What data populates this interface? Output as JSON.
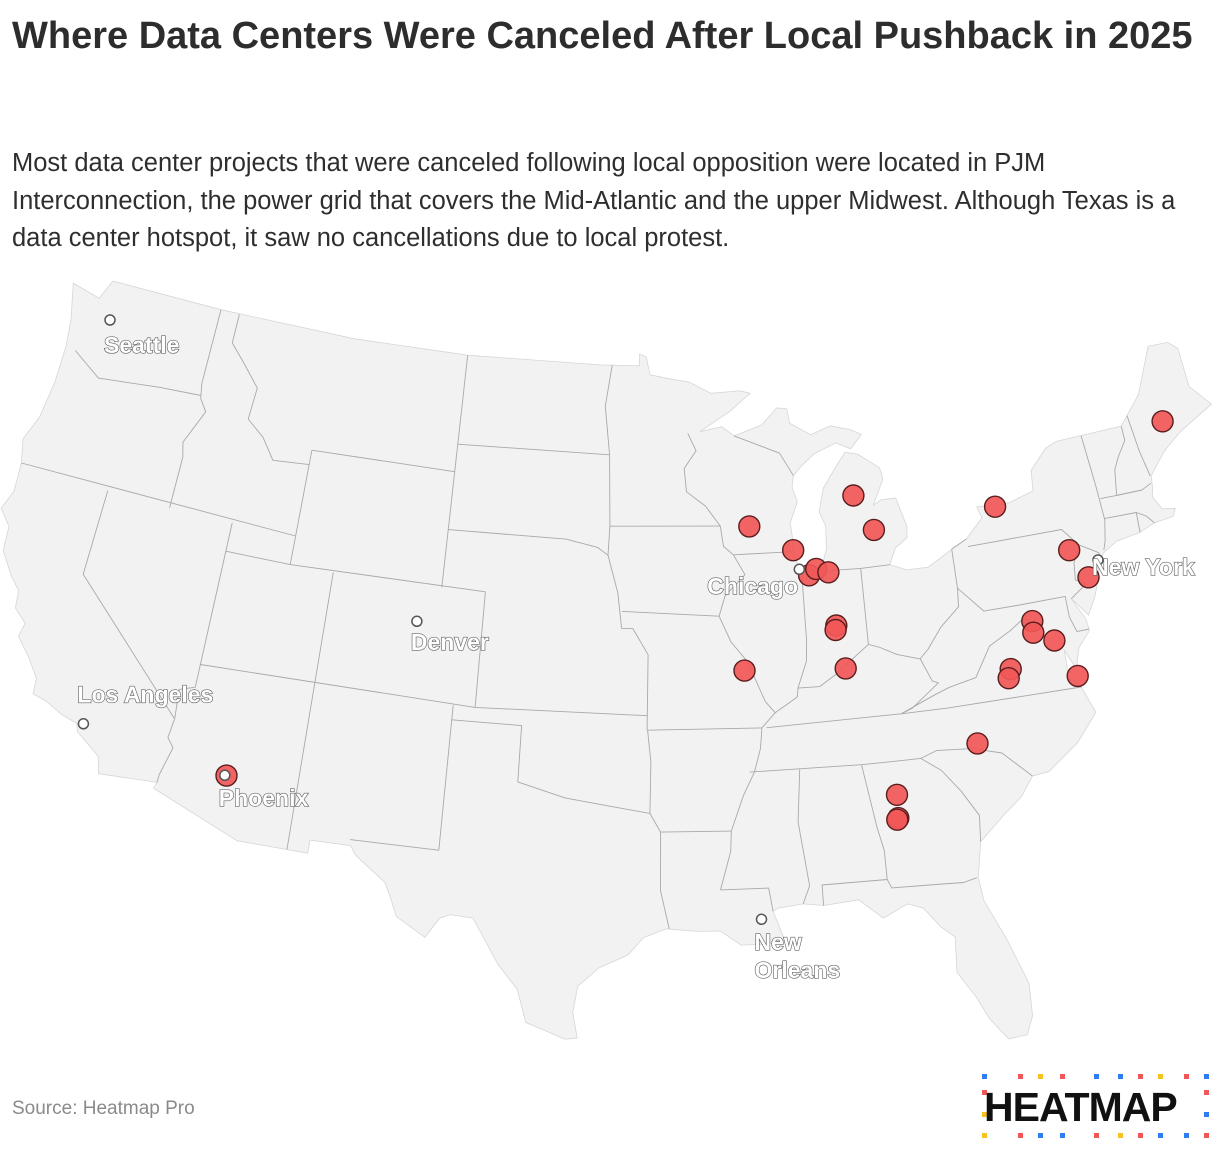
{
  "header": {
    "title": "Where Data Centers Were Canceled After Local Pushback in 2025",
    "subtitle": "Most data center projects that were canceled following local opposition were located in PJM Interconnection, the power grid that covers the Mid-Atlantic and the upper Midwest. Although Texas is a data center hotspot, it saw no cancellations due to local protest."
  },
  "map": {
    "region": "United States (contiguous)",
    "colors": {
      "land": "#f2f2f2",
      "state_border": "#a9a9a9",
      "marker_fill": "#f25757",
      "marker_stroke": "#5a1d1d",
      "city_dot": "#ffffff"
    },
    "cities": [
      {
        "label": "Seattle",
        "lines": [
          "Seattle"
        ],
        "lat": 47.61,
        "lon": -122.33
      },
      {
        "label": "Los Angeles",
        "lines": [
          "Los Angeles"
        ],
        "lat": 34.05,
        "lon": -118.24
      },
      {
        "label": "Denver",
        "lines": [
          "Denver"
        ],
        "lat": 39.74,
        "lon": -104.99
      },
      {
        "label": "Phoenix",
        "lines": [
          "Phoenix"
        ],
        "lat": 33.45,
        "lon": -112.07
      },
      {
        "label": "Chicago",
        "lines": [
          "Chicago"
        ],
        "lat": 41.88,
        "lon": -87.63
      },
      {
        "label": "New Orleans",
        "lines": [
          "New",
          "Orleans"
        ],
        "lat": 29.95,
        "lon": -90.07
      },
      {
        "label": "New York",
        "lines": [
          "New York"
        ],
        "lat": 40.71,
        "lon": -74.01
      }
    ],
    "canceled_projects": [
      {
        "lat": 33.45,
        "lon": -112.0
      },
      {
        "lat": 43.45,
        "lon": -89.85
      },
      {
        "lat": 42.55,
        "lon": -87.85
      },
      {
        "lat": 41.65,
        "lon": -87.2
      },
      {
        "lat": 41.85,
        "lon": -86.85
      },
      {
        "lat": 41.7,
        "lon": -86.3
      },
      {
        "lat": 44.25,
        "lon": -84.8
      },
      {
        "lat": 43.0,
        "lon": -84.0
      },
      {
        "lat": 39.85,
        "lon": -86.15
      },
      {
        "lat": 39.7,
        "lon": -86.2
      },
      {
        "lat": 38.35,
        "lon": -85.9
      },
      {
        "lat": 38.5,
        "lon": -90.35
      },
      {
        "lat": 43.2,
        "lon": -78.2
      },
      {
        "lat": 41.25,
        "lon": -75.2
      },
      {
        "lat": 40.2,
        "lon": -74.6
      },
      {
        "lat": 44.8,
        "lon": -69.5
      },
      {
        "lat": 39.1,
        "lon": -77.45
      },
      {
        "lat": 38.7,
        "lon": -77.5
      },
      {
        "lat": 38.3,
        "lon": -76.65
      },
      {
        "lat": 37.6,
        "lon": -78.75
      },
      {
        "lat": 37.3,
        "lon": -78.9
      },
      {
        "lat": 36.95,
        "lon": -75.95
      },
      {
        "lat": 35.25,
        "lon": -80.65
      },
      {
        "lat": 33.85,
        "lon": -84.25
      },
      {
        "lat": 33.05,
        "lon": -84.3
      },
      {
        "lat": 33.0,
        "lon": -84.35
      }
    ]
  },
  "footer": {
    "source": "Source: Heatmap Pro",
    "logo_text": "HEATMAP"
  }
}
